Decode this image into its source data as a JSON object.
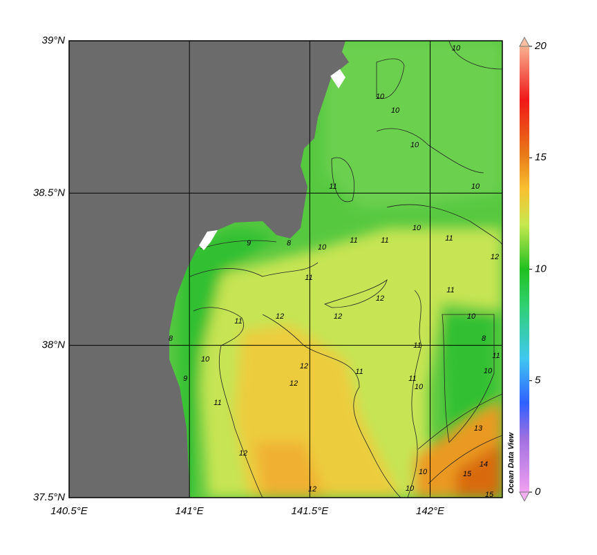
{
  "map": {
    "xlim": [
      140.5,
      142.3
    ],
    "ylim": [
      37.5,
      39
    ],
    "xticks": [
      {
        "value": 140.5,
        "label": "140.5°E"
      },
      {
        "value": 141,
        "label": "141°E"
      },
      {
        "value": 141.5,
        "label": "141.5°E"
      },
      {
        "value": 142,
        "label": "142°E"
      }
    ],
    "yticks": [
      {
        "value": 39,
        "label": "39°N"
      },
      {
        "value": 38.5,
        "label": "38.5°N"
      },
      {
        "value": 38,
        "label": "38°N"
      },
      {
        "value": 37.5,
        "label": "37.5°N"
      }
    ],
    "grid": true,
    "colorbar": {
      "lim": [
        0,
        20
      ],
      "ticks": [
        0,
        5,
        10,
        15,
        20
      ],
      "label": "Ocean Data View"
    },
    "contour_labels": [
      10,
      10,
      10,
      10,
      10,
      10,
      11,
      11,
      11,
      11,
      9,
      8,
      10,
      11,
      12,
      12,
      12,
      12,
      12,
      11,
      11,
      8,
      9,
      10,
      10,
      11,
      10,
      11,
      12,
      12,
      13,
      14,
      15,
      15,
      8,
      11,
      10,
      11,
      10,
      10,
      12,
      11
    ]
  }
}
